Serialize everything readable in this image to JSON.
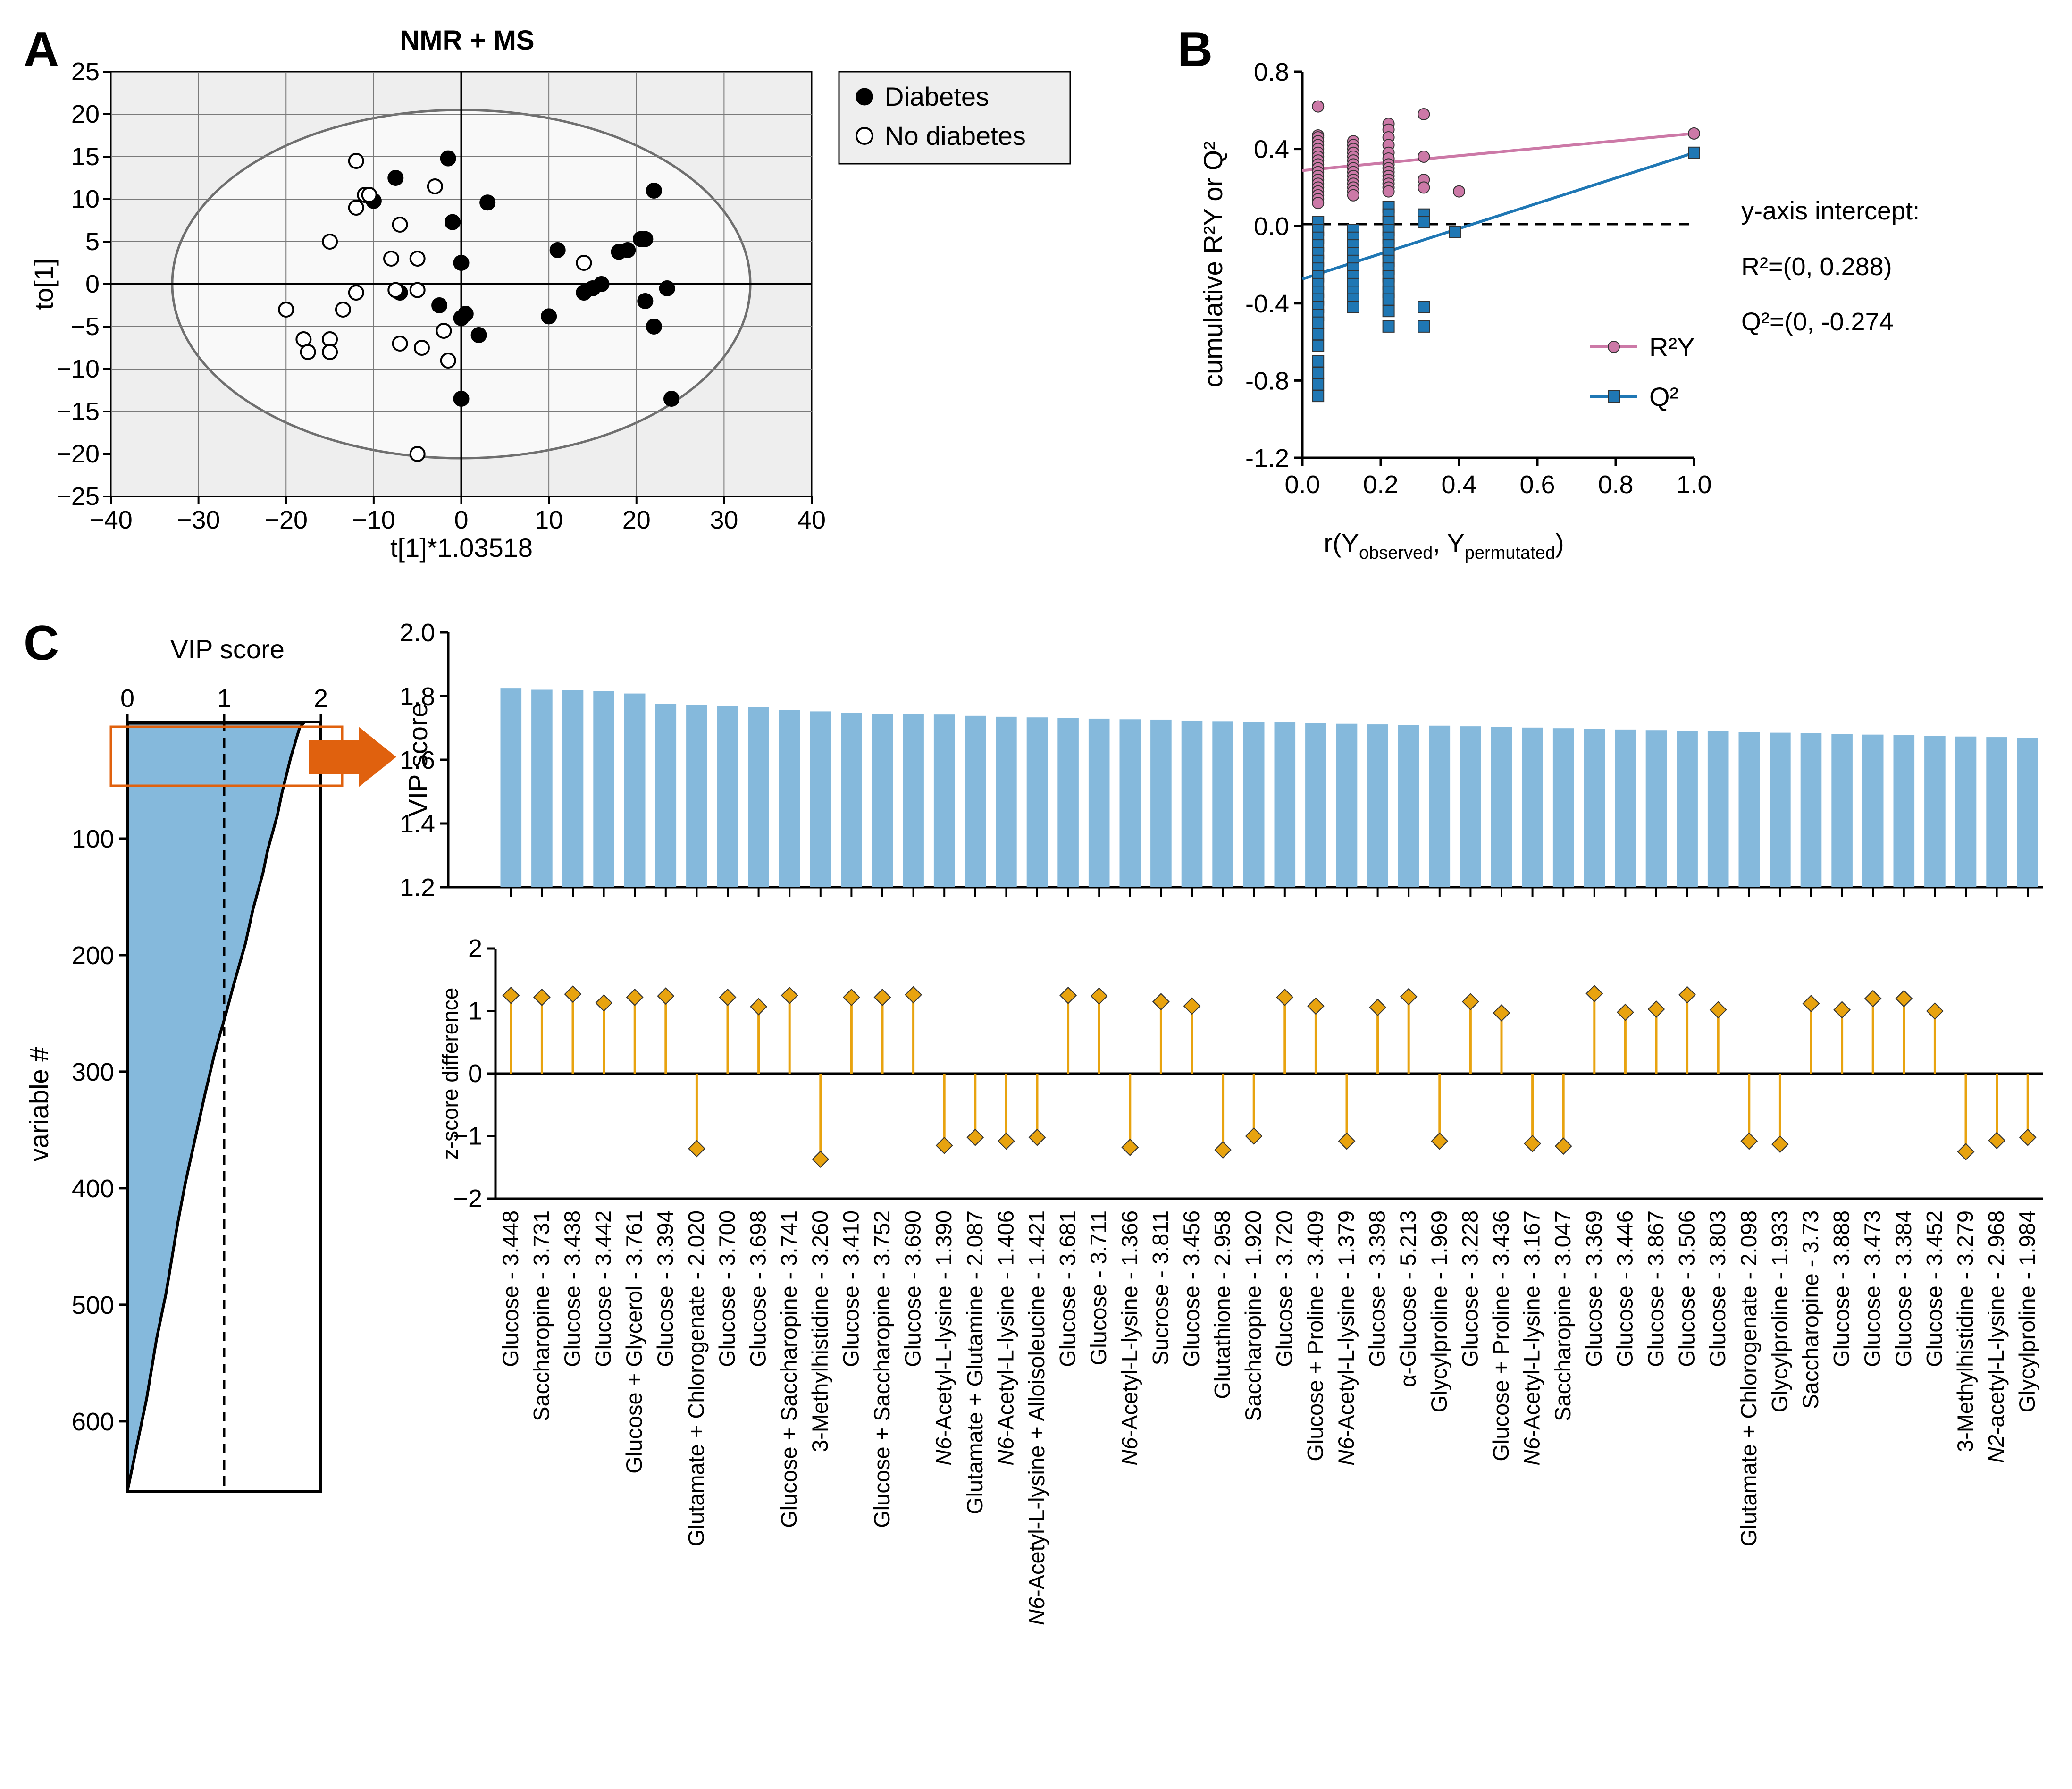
{
  "panels": {
    "A": {
      "letter": "A"
    },
    "B": {
      "letter": "B"
    },
    "C": {
      "letter": "C"
    }
  },
  "chart_data": [
    {
      "id": "A",
      "type": "scatter",
      "title": "NMR + MS",
      "xlabel": "t[1]*1.03518",
      "ylabel": "to[1]",
      "xlim": [
        -40,
        40
      ],
      "ylim": [
        -25,
        25
      ],
      "xticks": [
        -40,
        -30,
        -20,
        -10,
        0,
        10,
        20,
        30,
        40
      ],
      "yticks": [
        -25,
        -20,
        -15,
        -10,
        -5,
        0,
        5,
        10,
        15,
        20,
        25
      ],
      "grid": true,
      "ellipse": {
        "cx": 0,
        "cy": 0,
        "rx": 33,
        "ry": 20.5
      },
      "legend": {
        "position": "outside-right",
        "entries": [
          "Diabetes",
          "No diabetes"
        ]
      },
      "series": [
        {
          "name": "Diabetes",
          "marker": "filled-circle",
          "points": [
            [
              -10,
              9.8
            ],
            [
              -7.5,
              12.5
            ],
            [
              -1.5,
              14.8
            ],
            [
              -1,
              7.3
            ],
            [
              3,
              9.6
            ],
            [
              0,
              2.5
            ],
            [
              -7,
              -1
            ],
            [
              -2.5,
              -2.5
            ],
            [
              0,
              -4
            ],
            [
              0.5,
              -3.5
            ],
            [
              2,
              -6
            ],
            [
              0,
              -13.5
            ],
            [
              10,
              -3.8
            ],
            [
              11,
              4
            ],
            [
              14,
              -1
            ],
            [
              15,
              -0.5
            ],
            [
              16,
              0
            ],
            [
              18,
              3.8
            ],
            [
              19,
              4
            ],
            [
              20.5,
              5.3
            ],
            [
              21,
              5.3
            ],
            [
              22,
              11
            ],
            [
              21,
              -2
            ],
            [
              23.5,
              -0.5
            ],
            [
              22,
              -5
            ],
            [
              24,
              -13.5
            ]
          ]
        },
        {
          "name": "No diabetes",
          "marker": "open-circle",
          "points": [
            [
              -12,
              14.5
            ],
            [
              -12,
              9
            ],
            [
              -11,
              10.5
            ],
            [
              -10.5,
              10.5
            ],
            [
              -7,
              7
            ],
            [
              -3,
              11.5
            ],
            [
              -15,
              5
            ],
            [
              -8,
              3
            ],
            [
              -5,
              3
            ],
            [
              -7.5,
              -0.7
            ],
            [
              -5,
              -0.7
            ],
            [
              -12,
              -1
            ],
            [
              -13.5,
              -3
            ],
            [
              -20,
              -3
            ],
            [
              -18,
              -6.5
            ],
            [
              -17.5,
              -8
            ],
            [
              -15,
              -6.5
            ],
            [
              -15,
              -8
            ],
            [
              -7,
              -7
            ],
            [
              -4.5,
              -7.5
            ],
            [
              -2,
              -5.5
            ],
            [
              -1.5,
              -9
            ],
            [
              14,
              2.5
            ],
            [
              -5,
              -20
            ]
          ]
        }
      ]
    },
    {
      "id": "B",
      "type": "scatter",
      "xlabel": "r(Y",
      "xlabel_sub1": "observed",
      "xlabel_mid": ", Y",
      "xlabel_sub2": "permutated",
      "xlabel_end": ")",
      "ylabel": "cumulative R²Y or Q²",
      "xlim": [
        0,
        1
      ],
      "ylim": [
        -1.2,
        0.8
      ],
      "xticks": [
        "0.0",
        "0.2",
        "0.4",
        "0.6",
        "0.8",
        "1.0"
      ],
      "yticks": [
        "0.8",
        "0.4",
        "0.0",
        "-0.4",
        "-0.8",
        "-1.2"
      ],
      "annotation": {
        "title": "y-axis intercept:",
        "r2": "R²=(0, 0.288)",
        "q2": "Q²=(0, -0.274"
      },
      "legend": {
        "position": "bottom-right",
        "entries": [
          "R²Y",
          "Q²"
        ]
      },
      "series": [
        {
          "name": "R2Y",
          "color": "#cc79a7",
          "marker": "circle",
          "intercept": 0.288,
          "end": [
            1.0,
            0.48
          ],
          "points": [
            [
              0.04,
              0.62
            ],
            [
              0.04,
              0.47
            ],
            [
              0.04,
              0.46
            ],
            [
              0.04,
              0.44
            ],
            [
              0.04,
              0.42
            ],
            [
              0.04,
              0.4
            ],
            [
              0.04,
              0.38
            ],
            [
              0.04,
              0.36
            ],
            [
              0.04,
              0.34
            ],
            [
              0.04,
              0.32
            ],
            [
              0.04,
              0.3
            ],
            [
              0.04,
              0.28
            ],
            [
              0.04,
              0.26
            ],
            [
              0.04,
              0.24
            ],
            [
              0.04,
              0.22
            ],
            [
              0.04,
              0.2
            ],
            [
              0.04,
              0.18
            ],
            [
              0.04,
              0.16
            ],
            [
              0.04,
              0.14
            ],
            [
              0.04,
              0.12
            ],
            [
              0.13,
              0.44
            ],
            [
              0.13,
              0.42
            ],
            [
              0.13,
              0.4
            ],
            [
              0.13,
              0.38
            ],
            [
              0.13,
              0.36
            ],
            [
              0.13,
              0.34
            ],
            [
              0.13,
              0.32
            ],
            [
              0.13,
              0.3
            ],
            [
              0.13,
              0.28
            ],
            [
              0.13,
              0.26
            ],
            [
              0.13,
              0.24
            ],
            [
              0.13,
              0.22
            ],
            [
              0.13,
              0.2
            ],
            [
              0.13,
              0.18
            ],
            [
              0.13,
              0.16
            ],
            [
              0.22,
              0.53
            ],
            [
              0.22,
              0.5
            ],
            [
              0.22,
              0.46
            ],
            [
              0.22,
              0.42
            ],
            [
              0.22,
              0.38
            ],
            [
              0.22,
              0.35
            ],
            [
              0.22,
              0.32
            ],
            [
              0.22,
              0.3
            ],
            [
              0.22,
              0.28
            ],
            [
              0.22,
              0.26
            ],
            [
              0.22,
              0.24
            ],
            [
              0.22,
              0.22
            ],
            [
              0.22,
              0.2
            ],
            [
              0.22,
              0.18
            ],
            [
              0.31,
              0.58
            ],
            [
              0.31,
              0.36
            ],
            [
              0.31,
              0.24
            ],
            [
              0.31,
              0.2
            ],
            [
              0.4,
              0.18
            ],
            [
              1.0,
              0.48
            ]
          ]
        },
        {
          "name": "Q2",
          "color": "#1f77b4",
          "marker": "square",
          "intercept": -0.274,
          "end": [
            1.0,
            0.38
          ],
          "points": [
            [
              0.04,
              0.02
            ],
            [
              0.04,
              -0.02
            ],
            [
              0.04,
              -0.06
            ],
            [
              0.04,
              -0.1
            ],
            [
              0.04,
              -0.14
            ],
            [
              0.04,
              -0.18
            ],
            [
              0.04,
              -0.22
            ],
            [
              0.04,
              -0.26
            ],
            [
              0.04,
              -0.3
            ],
            [
              0.04,
              -0.34
            ],
            [
              0.04,
              -0.38
            ],
            [
              0.04,
              -0.42
            ],
            [
              0.04,
              -0.46
            ],
            [
              0.04,
              -0.5
            ],
            [
              0.04,
              -0.56
            ],
            [
              0.04,
              -0.62
            ],
            [
              0.04,
              -0.7
            ],
            [
              0.04,
              -0.76
            ],
            [
              0.04,
              -0.82
            ],
            [
              0.04,
              -0.88
            ],
            [
              0.13,
              -0.02
            ],
            [
              0.13,
              -0.06
            ],
            [
              0.13,
              -0.1
            ],
            [
              0.13,
              -0.14
            ],
            [
              0.13,
              -0.18
            ],
            [
              0.13,
              -0.22
            ],
            [
              0.13,
              -0.26
            ],
            [
              0.13,
              -0.3
            ],
            [
              0.13,
              -0.34
            ],
            [
              0.13,
              -0.38
            ],
            [
              0.13,
              -0.42
            ],
            [
              0.22,
              0.1
            ],
            [
              0.22,
              0.06
            ],
            [
              0.22,
              0.02
            ],
            [
              0.22,
              -0.02
            ],
            [
              0.22,
              -0.06
            ],
            [
              0.22,
              -0.1
            ],
            [
              0.22,
              -0.14
            ],
            [
              0.22,
              -0.18
            ],
            [
              0.22,
              -0.22
            ],
            [
              0.22,
              -0.26
            ],
            [
              0.22,
              -0.3
            ],
            [
              0.22,
              -0.34
            ],
            [
              0.22,
              -0.38
            ],
            [
              0.22,
              -0.44
            ],
            [
              0.22,
              -0.52
            ],
            [
              0.31,
              0.06
            ],
            [
              0.31,
              0.02
            ],
            [
              0.31,
              -0.42
            ],
            [
              0.31,
              -0.52
            ],
            [
              0.39,
              -0.03
            ],
            [
              1.0,
              0.38
            ]
          ]
        }
      ]
    },
    {
      "id": "C-overview",
      "type": "area",
      "title": "VIP score",
      "ylabel": "variable #",
      "xlim": [
        0,
        2
      ],
      "ylim": [
        0,
        660
      ],
      "xticks": [
        "0",
        "1",
        "2"
      ],
      "yticks": [
        "100",
        "200",
        "300",
        "400",
        "500",
        "600"
      ],
      "threshold": 1,
      "fill": "#85b9dc",
      "curve": [
        [
          1.82,
          1
        ],
        [
          1.78,
          5
        ],
        [
          1.69,
          30
        ],
        [
          1.6,
          60
        ],
        [
          1.55,
          80
        ],
        [
          1.5,
          95
        ],
        [
          1.45,
          110
        ],
        [
          1.4,
          130
        ],
        [
          1.3,
          160
        ],
        [
          1.22,
          190
        ],
        [
          1.1,
          225
        ],
        [
          1.02,
          250
        ],
        [
          0.95,
          270
        ],
        [
          0.9,
          285
        ],
        [
          0.8,
          320
        ],
        [
          0.72,
          350
        ],
        [
          0.6,
          395
        ],
        [
          0.52,
          430
        ],
        [
          0.4,
          490
        ],
        [
          0.3,
          530
        ],
        [
          0.2,
          580
        ],
        [
          0.1,
          620
        ],
        [
          0.05,
          640
        ],
        [
          0.0,
          660
        ]
      ]
    },
    {
      "id": "C-vip",
      "type": "bar",
      "ylabel": "VIP score",
      "ylim": [
        1.2,
        2.0
      ],
      "yticks": [
        "2.0",
        "1.8",
        "1.6",
        "1.4",
        "1.2"
      ],
      "color": "#85b9dc",
      "categories": [
        "Glucose - 3.448",
        "Saccharopine - 3.731",
        "Glucose - 3.438",
        "Glucose - 3.442",
        "Glucose + Glycerol - 3.761",
        "Glucose - 3.394",
        "Glutamate + Chlorogenate - 2.020",
        "Glucose - 3.700",
        "Glucose - 3.698",
        "Glucose + Saccharopine - 3.741",
        "3-Methylhistidine - 3.260",
        "Glucose - 3.410",
        "Glucose + Saccharopine - 3.752",
        "Glucose - 3.690",
        "N6-Acetyl-L-lysine - 1.390",
        "Glutamate + Glutamine - 2.087",
        "N6-Acetyl-L-lysine - 1.406",
        "N6-Acetyl-L-lysine + Alloisoleucine - 1.421",
        "Glucose - 3.681",
        "Glucose - 3.711",
        "N6-Acetyl-L-lysine - 1.366",
        "Sucrose - 3.811",
        "Glucose - 3.456",
        "Glutathione - 2.958",
        "Saccharopine - 1.920",
        "Glucose - 3.720",
        "Glucose + Proline - 3.409",
        "N6-Acetyl-L-lysine - 1.379",
        "Glucose - 3.398",
        "α-Glucose - 5.213",
        "Glycylproline - 1.969",
        "Glucose - 3.228",
        "Glucose + Proline - 3.436",
        "N6-Acetyl-L-lysine - 3.167",
        "Saccharopine - 3.047",
        "Glucose - 3.369",
        "Glucose - 3.446",
        "Glucose - 3.867",
        "Glucose - 3.506",
        "Glucose - 3.803",
        "Glutamate + Chlorogenate - 2.098",
        "Glycylproline - 1.933",
        "Saccharopine - 3.73",
        "Glucose - 3.888",
        "Glucose - 3.473",
        "Glucose - 3.384",
        "Glucose - 3.452",
        "3-Methylhistidine - 3.279",
        "N2-acetyl-L-lysine - 2.968",
        "Glycylproline - 1.984"
      ],
      "values": [
        1.825,
        1.82,
        1.818,
        1.815,
        1.808,
        1.775,
        1.772,
        1.77,
        1.765,
        1.757,
        1.752,
        1.748,
        1.745,
        1.744,
        1.742,
        1.738,
        1.735,
        1.733,
        1.731,
        1.729,
        1.727,
        1.726,
        1.723,
        1.721,
        1.719,
        1.717,
        1.715,
        1.713,
        1.711,
        1.709,
        1.707,
        1.705,
        1.703,
        1.701,
        1.699,
        1.697,
        1.695,
        1.693,
        1.691,
        1.689,
        1.687,
        1.685,
        1.683,
        1.681,
        1.679,
        1.677,
        1.675,
        1.673,
        1.671,
        1.669
      ]
    },
    {
      "id": "C-zscore",
      "type": "lollipop",
      "ylabel": "z-score difference",
      "ylim": [
        -2,
        2
      ],
      "yticks": [
        "2",
        "1",
        "0",
        "-1",
        "-2"
      ],
      "color": "#e8a30f",
      "values": [
        1.25,
        1.22,
        1.27,
        1.13,
        1.22,
        1.24,
        -1.2,
        1.22,
        1.07,
        1.25,
        -1.37,
        1.22,
        1.22,
        1.26,
        -1.15,
        -1.02,
        -1.08,
        -1.02,
        1.25,
        1.24,
        -1.18,
        1.15,
        1.08,
        -1.22,
        -1.0,
        1.22,
        1.08,
        -1.08,
        1.06,
        1.23,
        -1.08,
        1.15,
        0.97,
        -1.12,
        -1.16,
        1.28,
        0.98,
        1.03,
        1.26,
        1.02,
        -1.08,
        -1.13,
        1.12,
        1.02,
        1.2,
        1.2,
        1.0,
        -1.25,
        -1.07,
        -1.02
      ]
    }
  ]
}
